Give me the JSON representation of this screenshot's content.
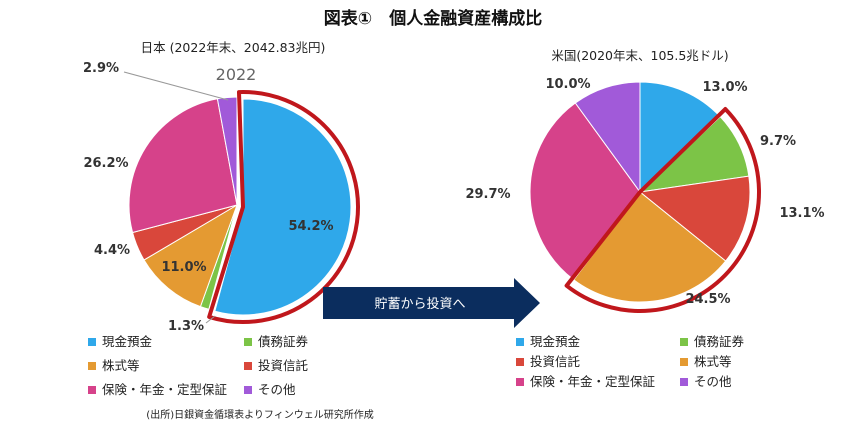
{
  "title": "図表①　個人金融資産構成比",
  "source": "(出所)日銀資金循環表よりフィンウェル研究所作成",
  "arrow_label": "貯蓄から投資へ",
  "colors": {
    "current_deposit": "#2fa8ea",
    "bonds": "#7cc447",
    "stocks": "#e49a32",
    "investment_trusts": "#d9473b",
    "insurance": "#d6428a",
    "other": "#a15ad9",
    "highlight": "#c0171c",
    "arrow": "#0b2d5e"
  },
  "chart_data": [
    {
      "type": "pie",
      "title": "日本 (2022年末、2042.83兆円)",
      "subtitle": "2022",
      "slices": [
        {
          "name": "現金預金",
          "value": 54.2,
          "label": "54.2%"
        },
        {
          "name": "債務証券",
          "value": 1.3,
          "label": "1.3%"
        },
        {
          "name": "株式等",
          "value": 11.0,
          "label": "11.0%"
        },
        {
          "name": "投資信託",
          "value": 4.4,
          "label": "4.4%"
        },
        {
          "name": "保険・年金・定型保証",
          "value": 26.2,
          "label": "26.2%"
        },
        {
          "name": "その他",
          "value": 2.9,
          "label": "2.9%"
        }
      ],
      "legend": [
        "現金預金",
        "債務証券",
        "株式等",
        "投資信託",
        "保険・年金・定型保証",
        "その他"
      ]
    },
    {
      "type": "pie",
      "title": "米国(2020年末、105.5兆ドル)",
      "slices": [
        {
          "name": "現金預金",
          "value": 13.0,
          "label": "13.0%"
        },
        {
          "name": "債務証券",
          "value": 9.7,
          "label": "9.7%"
        },
        {
          "name": "投資信託",
          "value": 13.1,
          "label": "13.1%"
        },
        {
          "name": "株式等",
          "value": 24.5,
          "label": "24.5%"
        },
        {
          "name": "保険・年金・定型保証",
          "value": 29.7,
          "label": "29.7%"
        },
        {
          "name": "その他",
          "value": 10.0,
          "label": "10.0%"
        }
      ],
      "legend": [
        "現金預金",
        "債務証券",
        "投資信託",
        "株式等",
        "保険・年金・定型保証",
        "その他"
      ]
    }
  ]
}
